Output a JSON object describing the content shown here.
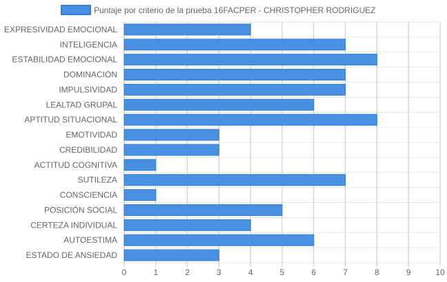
{
  "chart_data": {
    "type": "bar",
    "orientation": "horizontal",
    "categories": [
      "EXPRESIVIDAD EMOCIONAL",
      "INTELIGENCIA",
      "ESTABILIDAD EMOCIONAL",
      "DOMINACIÓN",
      "IMPULSIVIDAD",
      "LEALTAD GRUPAL",
      "APTITUD SITUACIONAL",
      "EMOTIVIDAD",
      "CREDIBILIDAD",
      "ACTITUD COGNITIVA",
      "SUTILEZA",
      "CONSCIENCIA",
      "POSICIÓN SOCIAL",
      "CERTEZA INDIVIDUAL",
      "AUTOESTIMA",
      "ESTADO DE ANSIEDAD"
    ],
    "series": [
      {
        "name": "Puntaje por criterio de la prueba 16FACPER - CHRISTOPHER RODRIGUEZ",
        "values": [
          4,
          7,
          8,
          7,
          7,
          6,
          8,
          3,
          3,
          1,
          7,
          1,
          5,
          4,
          6,
          3
        ],
        "color": "#4a90e2"
      }
    ],
    "xlim": [
      0,
      10
    ],
    "xticks": [
      0,
      1,
      2,
      3,
      4,
      5,
      6,
      7,
      8,
      9,
      10
    ],
    "grid": true,
    "legend_position": "top"
  },
  "colors": {
    "bar_fill": "#4a90e2",
    "bar_border": "#2f7fd8",
    "grid": "#e5e5e5",
    "major_grid": "#c8c8c8",
    "text": "#666666"
  }
}
